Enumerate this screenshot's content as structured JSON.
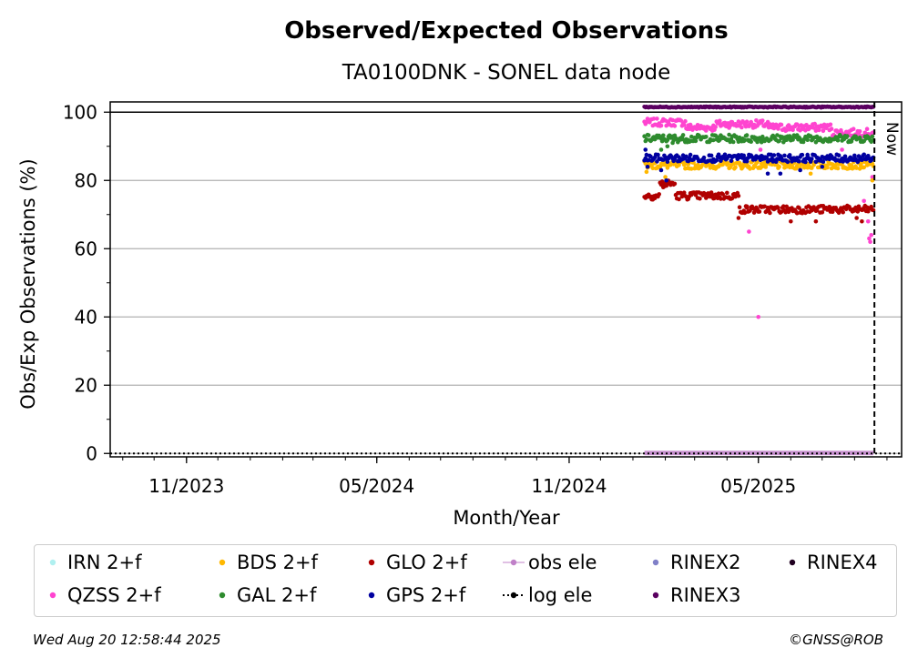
{
  "chart_data": {
    "type": "scatter",
    "title": "Observed/Expected Observations",
    "subtitle": "TA0100DNK - SONEL data node",
    "xlabel": "Month/Year",
    "ylabel": "Obs/Exp Observations (%)",
    "x_axis": {
      "min": "2023-08-20",
      "max": "2025-09-15",
      "ticks": [
        {
          "date": "2023-11-01",
          "label": "11/2023"
        },
        {
          "date": "2024-05-01",
          "label": "05/2024"
        },
        {
          "date": "2024-11-01",
          "label": "11/2024"
        },
        {
          "date": "2025-05-01",
          "label": "05/2025"
        }
      ]
    },
    "y_axis": {
      "min": -1,
      "max": 103,
      "ticks": [
        0,
        20,
        40,
        60,
        80,
        100
      ],
      "grid": true
    },
    "reference_line": {
      "y": 100
    },
    "now_marker": {
      "date": "2025-08-20",
      "label": "Now"
    },
    "data_range": {
      "start": "2025-01-12",
      "end": "2025-08-19"
    },
    "series": [
      {
        "name": "IRN 2+f",
        "color": "#b0f0f0",
        "values": []
      },
      {
        "name": "QZSS 2+f",
        "color": "#ff44d0",
        "levels": [
          {
            "from": "2025-01-12",
            "to": "2025-02-20",
            "value": 97
          },
          {
            "from": "2025-02-21",
            "to": "2025-03-20",
            "value": 95.5
          },
          {
            "from": "2025-03-21",
            "to": "2025-05-10",
            "value": 96.5
          },
          {
            "from": "2025-05-11",
            "to": "2025-07-10",
            "value": 95.5
          },
          {
            "from": "2025-07-11",
            "to": "2025-08-19",
            "value": 94
          }
        ],
        "outliers": [
          {
            "date": "2025-04-22",
            "value": 65
          },
          {
            "date": "2025-05-01",
            "value": 40
          },
          {
            "date": "2025-05-03",
            "value": 89
          },
          {
            "date": "2025-07-20",
            "value": 89
          },
          {
            "date": "2025-08-10",
            "value": 74
          },
          {
            "date": "2025-08-14",
            "value": 68
          },
          {
            "date": "2025-08-15",
            "value": 63
          },
          {
            "date": "2025-08-16",
            "value": 62
          },
          {
            "date": "2025-08-17",
            "value": 64
          },
          {
            "date": "2025-08-18",
            "value": 81
          }
        ]
      },
      {
        "name": "BDS 2+f",
        "color": "#ffb800",
        "levels": [
          {
            "from": "2025-01-12",
            "to": "2025-08-19",
            "value": 84.5
          }
        ],
        "outliers": [
          {
            "date": "2025-01-14",
            "value": 82.5
          },
          {
            "date": "2025-02-01",
            "value": 81
          },
          {
            "date": "2025-06-20",
            "value": 82
          },
          {
            "date": "2025-08-18",
            "value": 80
          }
        ]
      },
      {
        "name": "GAL 2+f",
        "color": "#2e8b2e",
        "levels": [
          {
            "from": "2025-01-12",
            "to": "2025-08-19",
            "value": 92.3
          }
        ],
        "outliers": [
          {
            "date": "2025-01-28",
            "value": 89
          },
          {
            "date": "2025-02-03",
            "value": 90
          },
          {
            "date": "2025-02-08",
            "value": 91
          }
        ]
      },
      {
        "name": "GLO 2+f",
        "color": "#b00000",
        "levels": [
          {
            "from": "2025-01-12",
            "to": "2025-01-26",
            "value": 75.5
          },
          {
            "from": "2025-01-27",
            "to": "2025-02-10",
            "value": 79
          },
          {
            "from": "2025-02-11",
            "to": "2025-04-12",
            "value": 75.5
          },
          {
            "from": "2025-04-13",
            "to": "2025-08-19",
            "value": 71.5
          }
        ],
        "outliers": [
          {
            "date": "2025-01-30",
            "value": 78
          },
          {
            "date": "2025-04-12",
            "value": 69
          },
          {
            "date": "2025-04-20",
            "value": 72
          },
          {
            "date": "2025-06-01",
            "value": 68
          },
          {
            "date": "2025-06-25",
            "value": 68
          },
          {
            "date": "2025-08-03",
            "value": 69
          },
          {
            "date": "2025-08-08",
            "value": 68
          }
        ]
      },
      {
        "name": "obs ele",
        "color": "#c080c8",
        "levels": [
          {
            "from": "2025-01-12",
            "to": "2025-08-19",
            "value": 0
          }
        ],
        "outliers": []
      },
      {
        "name": "log ele",
        "color": "#000000",
        "levels": [
          {
            "from": "2023-08-20",
            "to": "2025-09-15",
            "value": 0
          }
        ],
        "outliers": []
      },
      {
        "name": "GPS 2+f",
        "color": "#0000a0",
        "levels": [
          {
            "from": "2025-01-12",
            "to": "2025-08-19",
            "value": 86.5
          }
        ],
        "outliers": [
          {
            "date": "2025-01-13",
            "value": 89
          },
          {
            "date": "2025-01-15",
            "value": 84
          },
          {
            "date": "2025-01-28",
            "value": 83
          },
          {
            "date": "2025-02-02",
            "value": 80
          },
          {
            "date": "2025-05-10",
            "value": 82
          },
          {
            "date": "2025-05-22",
            "value": 82
          },
          {
            "date": "2025-06-10",
            "value": 83
          },
          {
            "date": "2025-07-01",
            "value": 84
          }
        ]
      },
      {
        "name": "RINEX2",
        "color": "#8080c8",
        "values": []
      },
      {
        "name": "RINEX3",
        "color": "#5a0060",
        "levels": [
          {
            "from": "2025-01-12",
            "to": "2025-08-19",
            "value": 101.5
          }
        ],
        "outliers": []
      },
      {
        "name": "RINEX4",
        "color": "#200020",
        "values": []
      }
    ],
    "legend": {
      "placement": "bottom",
      "entries": [
        {
          "label": "IRN 2+f",
          "color": "#b0f0f0",
          "marker": "dot"
        },
        {
          "label": "BDS 2+f",
          "color": "#ffb800",
          "marker": "dot"
        },
        {
          "label": "GLO 2+f",
          "color": "#b00000",
          "marker": "dot"
        },
        {
          "label": "obs ele",
          "color": "#c080c8",
          "marker": "line-dot"
        },
        {
          "label": "RINEX2",
          "color": "#8080c8",
          "marker": "dot"
        },
        {
          "label": "RINEX4",
          "color": "#200020",
          "marker": "dot"
        },
        {
          "label": "QZSS 2+f",
          "color": "#ff44d0",
          "marker": "dot"
        },
        {
          "label": "GAL 2+f",
          "color": "#2e8b2e",
          "marker": "dot"
        },
        {
          "label": "GPS 2+f",
          "color": "#0000a0",
          "marker": "dot"
        },
        {
          "label": "log ele",
          "color": "#000000",
          "marker": "dotted-line-dot"
        },
        {
          "label": "RINEX3",
          "color": "#5a0060",
          "marker": "dot"
        }
      ]
    }
  },
  "footer": {
    "timestamp": "Wed Aug 20 12:58:44 2025",
    "credit": "©GNSS@ROB"
  }
}
